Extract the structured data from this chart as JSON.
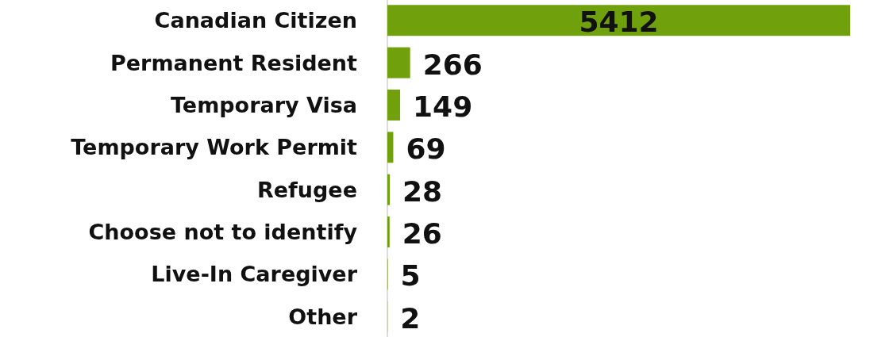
{
  "chart_data": {
    "type": "bar",
    "orientation": "horizontal",
    "categories": [
      "Canadian Citizen",
      "Permanent Resident",
      "Temporary Visa",
      "Temporary Work Permit",
      "Refugee",
      "Choose not to identify",
      "Live-In Caregiver",
      "Other"
    ],
    "values": [
      5412,
      266,
      149,
      69,
      28,
      26,
      5,
      2
    ],
    "color": "#70a00c",
    "data_labels": true
  }
}
